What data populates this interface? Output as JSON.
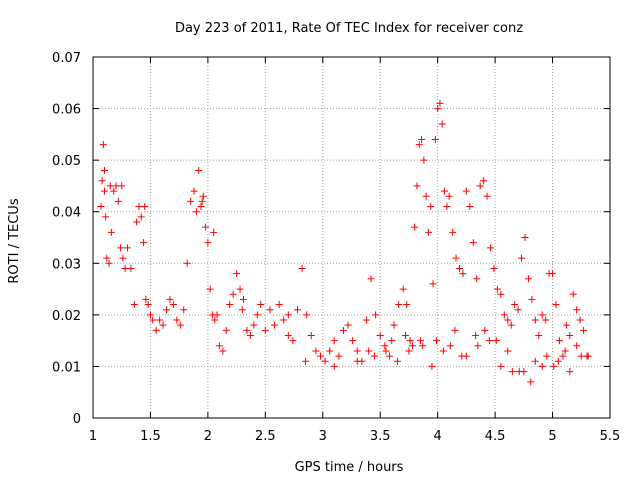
{
  "chart_data": {
    "type": "scatter",
    "title": "Day 223 of 2011, Rate Of TEC Index for receiver conz",
    "xlabel": "GPS time / hours",
    "ylabel": "ROTI / TECUs",
    "xlim": [
      1,
      5.5
    ],
    "ylim": [
      0,
      0.07
    ],
    "xticks": [
      1,
      1.5,
      2,
      2.5,
      3,
      3.5,
      4,
      4.5,
      5,
      5.5
    ],
    "xtick_labels": [
      "1",
      "1.5",
      "2",
      "2.5",
      "3",
      "3.5",
      "4",
      "4.5",
      "5",
      "5.5"
    ],
    "yticks": [
      0,
      0.01,
      0.02,
      0.03,
      0.04,
      0.05,
      0.06,
      0.07
    ],
    "ytick_labels": [
      "0",
      "0.01",
      "0.02",
      "0.03",
      "0.04",
      "0.05",
      "0.06",
      "0.07"
    ],
    "grid": true,
    "marker": "+",
    "marker_color": "#ff0000",
    "series": [
      {
        "name": "ROTI",
        "x": [
          1.07,
          1.08,
          1.09,
          1.1,
          1.11,
          1.12,
          1.14,
          1.16,
          1.18,
          1.2,
          1.22,
          1.24,
          1.26,
          1.28,
          1.3,
          1.33,
          1.36,
          1.38,
          1.4,
          1.42,
          1.44,
          1.46,
          1.48,
          1.5,
          1.52,
          1.55,
          1.58,
          1.61,
          1.64,
          1.67,
          1.7,
          1.73,
          1.76,
          1.79,
          1.82,
          1.85,
          1.88,
          1.9,
          1.92,
          1.94,
          1.96,
          1.98,
          2.0,
          2.02,
          2.04,
          2.06,
          2.08,
          2.1,
          2.13,
          2.16,
          2.19,
          2.22,
          2.25,
          2.28,
          2.31,
          2.34,
          2.37,
          2.4,
          2.43,
          2.46,
          2.5,
          2.54,
          2.58,
          2.62,
          2.66,
          2.7,
          2.74,
          2.78,
          2.82,
          2.86,
          2.9,
          2.94,
          2.98,
          3.02,
          3.06,
          3.1,
          3.14,
          3.18,
          3.22,
          3.26,
          3.3,
          3.34,
          3.38,
          3.42,
          3.46,
          3.5,
          3.54,
          3.58,
          3.62,
          3.66,
          3.7,
          3.73,
          3.76,
          3.78,
          3.8,
          3.82,
          3.84,
          3.86,
          3.88,
          3.9,
          3.92,
          3.94,
          3.96,
          3.98,
          4.0,
          4.02,
          4.04,
          4.06,
          4.08,
          4.1,
          4.13,
          4.16,
          4.19,
          4.22,
          4.25,
          4.28,
          4.31,
          4.34,
          4.37,
          4.4,
          4.43,
          4.46,
          4.49,
          4.52,
          4.55,
          4.58,
          4.61,
          4.64,
          4.67,
          4.7,
          4.73,
          4.76,
          4.79,
          4.82,
          4.85,
          4.88,
          4.91,
          4.94,
          4.97,
          5.0,
          5.03,
          5.06,
          5.09,
          5.12,
          5.15,
          5.18,
          5.21,
          5.24,
          5.27,
          5.3,
          1.1,
          1.15,
          1.25,
          1.45,
          1.95,
          2.05,
          2.3,
          2.7,
          2.85,
          3.1,
          3.3,
          3.45,
          3.55,
          3.65,
          3.75,
          3.85,
          3.95,
          4.05,
          4.15,
          4.25,
          4.35,
          4.45,
          4.55,
          4.65,
          4.75,
          4.85,
          4.95,
          5.05,
          5.15,
          5.25,
          3.4,
          3.6,
          3.72,
          3.87,
          3.99,
          4.11,
          4.21,
          4.33,
          4.41,
          4.51,
          4.61,
          4.71,
          4.81,
          4.91,
          5.01,
          5.11,
          5.21,
          5.31
        ],
        "y": [
          0.041,
          0.046,
          0.053,
          0.044,
          0.039,
          0.031,
          0.03,
          0.036,
          0.044,
          0.045,
          0.042,
          0.033,
          0.031,
          0.029,
          0.033,
          0.029,
          0.022,
          0.038,
          0.041,
          0.039,
          0.034,
          0.023,
          0.022,
          0.02,
          0.019,
          0.017,
          0.019,
          0.018,
          0.021,
          0.023,
          0.022,
          0.019,
          0.018,
          0.021,
          0.03,
          0.042,
          0.044,
          0.04,
          0.048,
          0.041,
          0.043,
          0.037,
          0.034,
          0.025,
          0.02,
          0.019,
          0.02,
          0.014,
          0.013,
          0.017,
          0.022,
          0.024,
          0.028,
          0.025,
          0.023,
          0.017,
          0.016,
          0.018,
          0.02,
          0.022,
          0.017,
          0.021,
          0.018,
          0.022,
          0.019,
          0.016,
          0.015,
          0.021,
          0.029,
          0.02,
          0.016,
          0.013,
          0.012,
          0.011,
          0.013,
          0.015,
          0.012,
          0.017,
          0.018,
          0.015,
          0.013,
          0.011,
          0.019,
          0.027,
          0.02,
          0.016,
          0.014,
          0.012,
          0.018,
          0.022,
          0.025,
          0.022,
          0.015,
          0.014,
          0.037,
          0.045,
          0.053,
          0.054,
          0.05,
          0.043,
          0.036,
          0.041,
          0.026,
          0.054,
          0.06,
          0.061,
          0.057,
          0.044,
          0.041,
          0.043,
          0.036,
          0.031,
          0.029,
          0.028,
          0.044,
          0.041,
          0.034,
          0.027,
          0.045,
          0.046,
          0.043,
          0.033,
          0.029,
          0.025,
          0.024,
          0.02,
          0.019,
          0.018,
          0.022,
          0.021,
          0.031,
          0.035,
          0.027,
          0.023,
          0.019,
          0.016,
          0.02,
          0.019,
          0.028,
          0.028,
          0.022,
          0.015,
          0.012,
          0.018,
          0.016,
          0.024,
          0.021,
          0.019,
          0.017,
          0.012,
          0.048,
          0.045,
          0.045,
          0.041,
          0.042,
          0.036,
          0.021,
          0.02,
          0.011,
          0.01,
          0.011,
          0.012,
          0.013,
          0.011,
          0.013,
          0.015,
          0.01,
          0.013,
          0.017,
          0.012,
          0.014,
          0.015,
          0.01,
          0.009,
          0.009,
          0.011,
          0.012,
          0.011,
          0.009,
          0.012,
          0.013,
          0.015,
          0.016,
          0.014,
          0.015,
          0.014,
          0.012,
          0.016,
          0.017,
          0.015,
          0.013,
          0.009,
          0.007,
          0.01,
          0.01,
          0.013,
          0.014,
          0.012
        ]
      }
    ]
  }
}
